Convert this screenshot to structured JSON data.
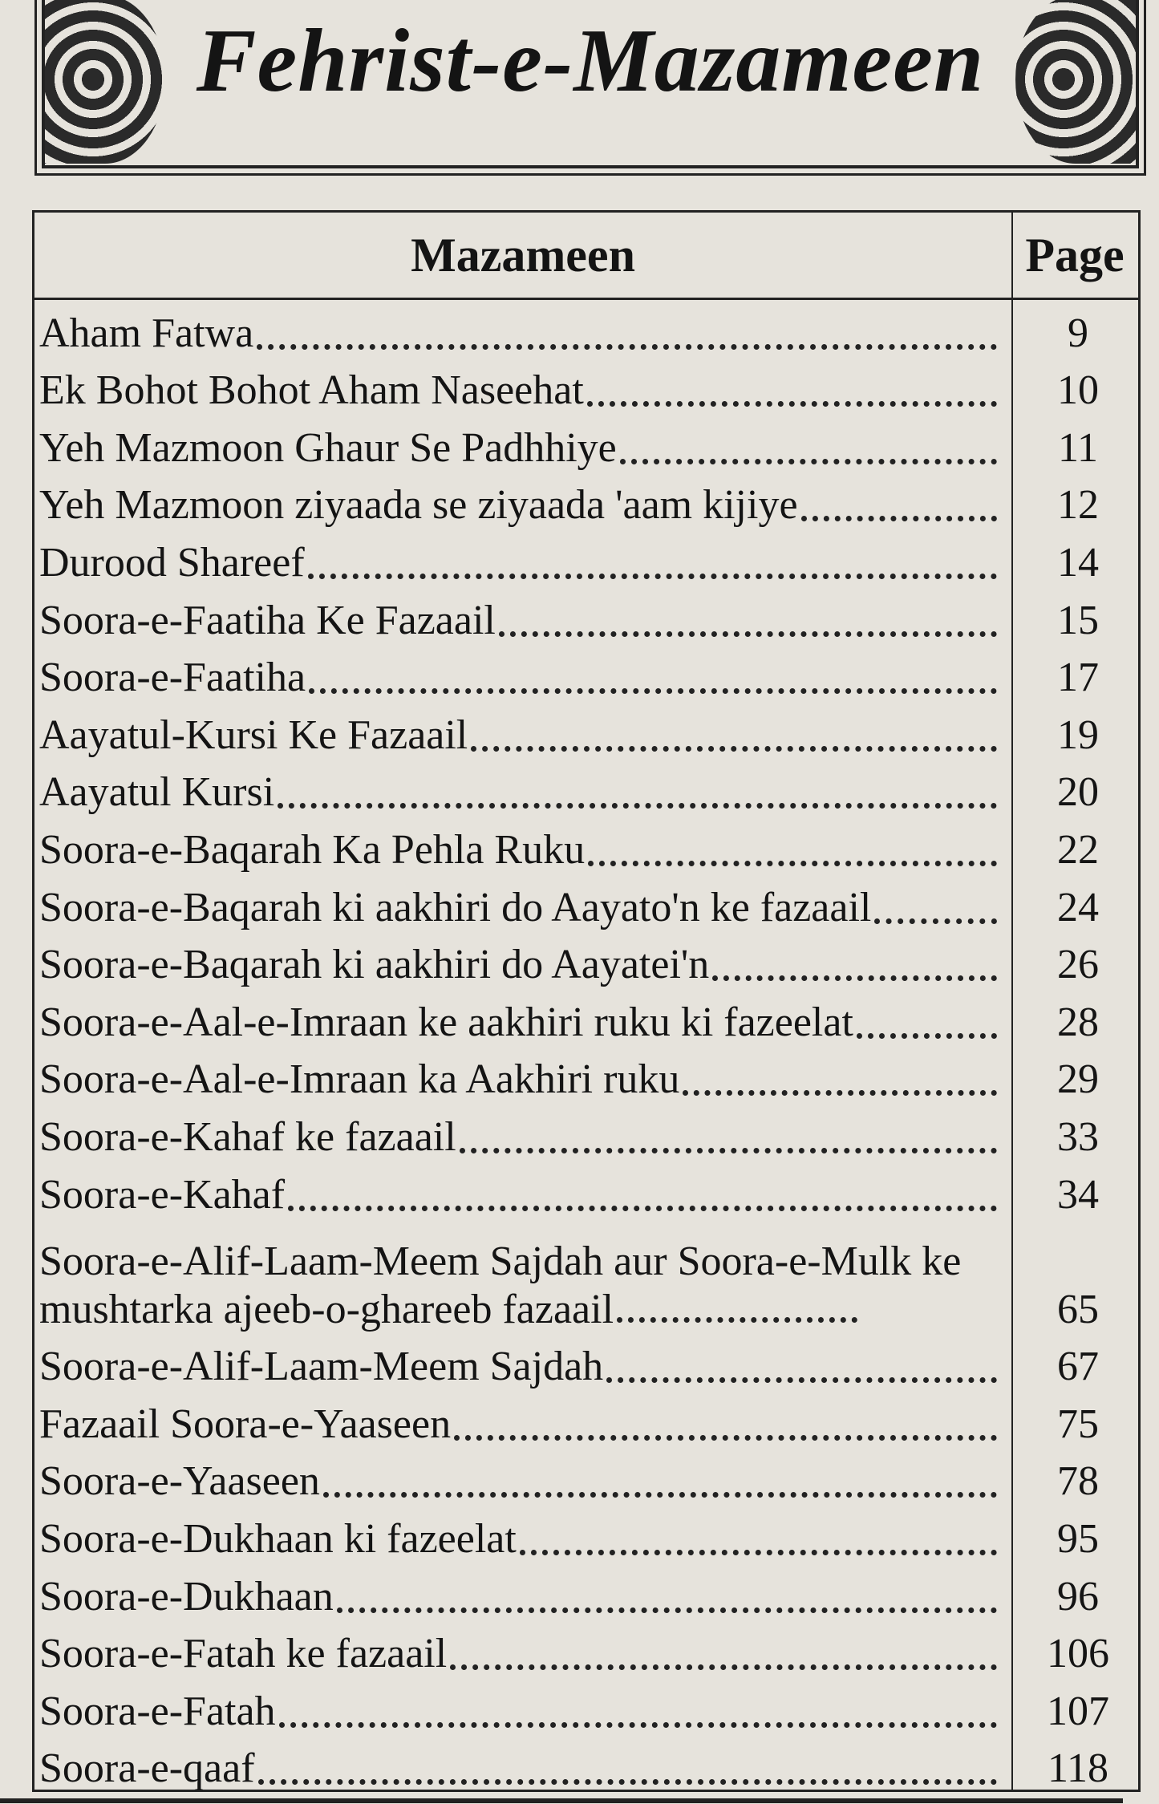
{
  "title": "Fehrist-e-Mazameen",
  "table": {
    "headers": {
      "topic": "Mazameen",
      "page": "Page"
    },
    "rows": [
      {
        "topic": "Aham Fatwa",
        "page": "9"
      },
      {
        "topic": "Ek Bohot Bohot Aham Naseehat",
        "page": "10"
      },
      {
        "topic": "Yeh Mazmoon Ghaur Se Padhhiye",
        "page": "11"
      },
      {
        "topic": "Yeh Mazmoon ziyaada se ziyaada 'aam kijiye",
        "page": "12"
      },
      {
        "topic": "Durood Shareef",
        "page": "14"
      },
      {
        "topic": "Soora-e-Faatiha Ke Fazaail",
        "page": "15"
      },
      {
        "topic": "Soora-e-Faatiha",
        "page": "17"
      },
      {
        "topic": "Aayatul-Kursi Ke Fazaail",
        "page": "19"
      },
      {
        "topic": "Aayatul Kursi",
        "page": "20"
      },
      {
        "topic": "Soora-e-Baqarah Ka Pehla Ruku",
        "page": "22"
      },
      {
        "topic": "Soora-e-Baqarah ki aakhiri do Aayato'n ke fazaail",
        "page": "24"
      },
      {
        "topic": "Soora-e-Baqarah ki aakhiri do Aayatei'n",
        "page": "26"
      },
      {
        "topic": "Soora-e-Aal-e-Imraan ke aakhiri ruku ki fazeelat",
        "page": "28"
      },
      {
        "topic": "Soora-e-Aal-e-Imraan ka Aakhiri ruku",
        "page": "29"
      },
      {
        "topic": "Soora-e-Kahaf ke fazaail",
        "page": "33"
      },
      {
        "topic": "Soora-e-Kahaf",
        "page": "34"
      },
      {
        "topic": "Soora-e-Alif-Laam-Meem Sajdah aur Soora-e-Mulk ke mushtarka ajeeb-o-ghareeb fazaail",
        "page": "65"
      },
      {
        "topic": "Soora-e-Alif-Laam-Meem Sajdah",
        "page": "67"
      },
      {
        "topic": "Fazaail Soora-e-Yaaseen",
        "page": "75"
      },
      {
        "topic": "Soora-e-Yaaseen",
        "page": "78"
      },
      {
        "topic": "Soora-e-Dukhaan ki fazeelat",
        "page": "95"
      },
      {
        "topic": "Soora-e-Dukhaan",
        "page": "96"
      },
      {
        "topic": "Soora-e-Fatah ke fazaail",
        "page": "106"
      },
      {
        "topic": "Soora-e-Fatah",
        "page": "107"
      },
      {
        "topic": "Soora-e-qaaf",
        "page": "118"
      }
    ]
  }
}
